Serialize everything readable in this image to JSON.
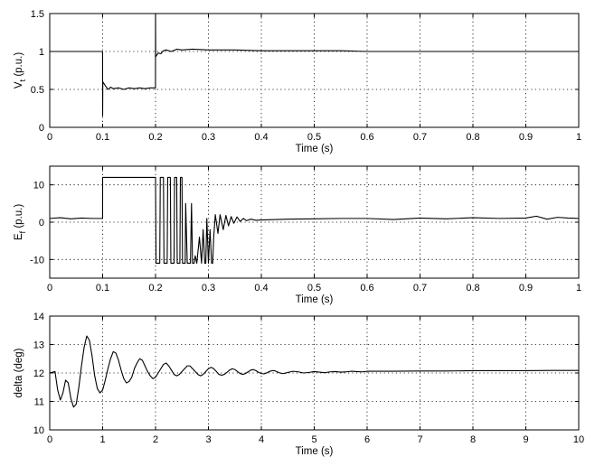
{
  "figure": {
    "background": "#ffffff",
    "line_color": "#000000"
  },
  "chart_data": [
    {
      "type": "line",
      "xlabel": "Time (s)",
      "ylabel": "V",
      "ylabel_subscript": "t",
      "ylabel_suffix": " (p.u.)",
      "xlim": [
        0,
        1
      ],
      "ylim": [
        0,
        1.5
      ],
      "xticks": [
        0,
        0.1,
        0.2,
        0.3,
        0.4,
        0.5,
        0.6,
        0.7,
        0.8,
        0.9,
        1
      ],
      "xtick_labels": [
        "0",
        "0.1",
        "0.2",
        "0.3",
        "0.4",
        "0.5",
        "0.6",
        "0.7",
        "0.8",
        "0.9",
        "1"
      ],
      "yticks": [
        0,
        0.5,
        1,
        1.5
      ],
      "ytick_labels": [
        "0",
        "0.5",
        "1",
        "1.5"
      ],
      "grid": true,
      "series": [
        {
          "x": [
            0,
            0.0999,
            0.1,
            0.1003,
            0.105,
            0.11,
            0.115,
            0.12,
            0.13,
            0.14,
            0.15,
            0.16,
            0.17,
            0.18,
            0.19,
            0.1999,
            0.2,
            0.2003,
            0.205,
            0.21,
            0.215,
            0.22,
            0.23,
            0.24,
            0.25,
            0.27,
            0.3,
            0.35,
            0.4,
            0.45,
            0.5,
            0.55,
            0.6,
            0.7,
            0.8,
            0.9,
            1
          ],
          "y": [
            1,
            1,
            0.15,
            0.6,
            0.55,
            0.5,
            0.53,
            0.51,
            0.52,
            0.5,
            0.52,
            0.51,
            0.52,
            0.51,
            0.52,
            0.52,
            1.5,
            0.93,
            0.98,
            0.97,
            1.01,
            1.02,
            1.0,
            1.03,
            1.02,
            1.03,
            1.02,
            1.02,
            1.01,
            1.01,
            1.01,
            1.01,
            1.0,
            1.0,
            1.0,
            1.0,
            1.0
          ]
        }
      ]
    },
    {
      "type": "line",
      "xlabel": "Time (s)",
      "ylabel": "E",
      "ylabel_subscript": "f",
      "ylabel_suffix": " (p.u.)",
      "xlim": [
        0,
        1
      ],
      "ylim": [
        -15,
        15
      ],
      "xticks": [
        0,
        0.1,
        0.2,
        0.3,
        0.4,
        0.5,
        0.6,
        0.7,
        0.8,
        0.9,
        1
      ],
      "xtick_labels": [
        "0",
        "0.1",
        "0.2",
        "0.3",
        "0.4",
        "0.5",
        "0.6",
        "0.7",
        "0.8",
        "0.9",
        "1"
      ],
      "yticks": [
        -10,
        0,
        10
      ],
      "ytick_labels": [
        "-10",
        "0",
        "10"
      ],
      "grid": true,
      "series": [
        {
          "x": [
            0,
            0.02,
            0.04,
            0.06,
            0.08,
            0.0999,
            0.1,
            0.2,
            0.201,
            0.208,
            0.209,
            0.215,
            0.216,
            0.222,
            0.223,
            0.228,
            0.229,
            0.235,
            0.236,
            0.24,
            0.241,
            0.246,
            0.247,
            0.25,
            0.251,
            0.256,
            0.257,
            0.26,
            0.262,
            0.266,
            0.268,
            0.27,
            0.273,
            0.275,
            0.278,
            0.283,
            0.287,
            0.29,
            0.293,
            0.295,
            0.297,
            0.3,
            0.303,
            0.306,
            0.308,
            0.31,
            0.313,
            0.318,
            0.322,
            0.328,
            0.333,
            0.338,
            0.343,
            0.348,
            0.354,
            0.36,
            0.366,
            0.372,
            0.38,
            0.39,
            0.4,
            0.45,
            0.5,
            0.55,
            0.6,
            0.65,
            0.7,
            0.75,
            0.8,
            0.85,
            0.9,
            0.92,
            0.94,
            0.96,
            0.98,
            1
          ],
          "y": [
            1,
            1.2,
            0.9,
            1.1,
            1.0,
            1.0,
            12,
            12,
            -11,
            -11,
            12,
            12,
            -11,
            -11,
            12,
            12,
            -11,
            -11,
            12,
            12,
            -11,
            -11,
            12,
            12,
            -11,
            -11,
            5,
            -11,
            -11,
            -11,
            5,
            -11,
            -11,
            -9,
            -11,
            -4,
            -11,
            -2,
            -11,
            -11,
            1,
            -11,
            -2,
            -11,
            -11,
            -4,
            2,
            -3,
            2,
            -2,
            1.8,
            -1,
            1.5,
            -0.3,
            1.4,
            0.2,
            1.0,
            0.4,
            0.8,
            0.5,
            0.6,
            0.8,
            0.9,
            1.0,
            1.0,
            0.7,
            1.1,
            0.9,
            1.2,
            1.0,
            1.1,
            1.6,
            0.8,
            1.3,
            1.1,
            1.0
          ]
        }
      ]
    },
    {
      "type": "line",
      "xlabel": "Time (s)",
      "ylabel": "delta (deg)",
      "ylabel_subscript": "",
      "ylabel_suffix": "",
      "xlim": [
        0,
        10
      ],
      "ylim": [
        10,
        14
      ],
      "xticks": [
        0,
        1,
        2,
        3,
        4,
        5,
        6,
        7,
        8,
        9,
        10
      ],
      "xtick_labels": [
        "0",
        "1",
        "2",
        "3",
        "4",
        "5",
        "6",
        "7",
        "8",
        "9",
        "10"
      ],
      "yticks": [
        10,
        11,
        12,
        13,
        14
      ],
      "ytick_labels": [
        "10",
        "11",
        "12",
        "13",
        "14"
      ],
      "grid": true,
      "series": [
        {
          "x": [
            0,
            0.1,
            0.15,
            0.2,
            0.25,
            0.3,
            0.35,
            0.4,
            0.45,
            0.5,
            0.55,
            0.6,
            0.65,
            0.7,
            0.75,
            0.8,
            0.85,
            0.9,
            0.95,
            1.0,
            1.05,
            1.1,
            1.15,
            1.2,
            1.25,
            1.3,
            1.35,
            1.4,
            1.45,
            1.5,
            1.55,
            1.6,
            1.65,
            1.7,
            1.75,
            1.8,
            1.85,
            1.9,
            1.95,
            2.0,
            2.05,
            2.1,
            2.15,
            2.2,
            2.25,
            2.3,
            2.35,
            2.4,
            2.45,
            2.5,
            2.55,
            2.6,
            2.65,
            2.7,
            2.75,
            2.8,
            2.85,
            2.9,
            2.95,
            3.0,
            3.05,
            3.1,
            3.15,
            3.2,
            3.25,
            3.3,
            3.35,
            3.4,
            3.45,
            3.5,
            3.55,
            3.6,
            3.65,
            3.7,
            3.75,
            3.8,
            3.85,
            3.9,
            3.95,
            4.0,
            4.05,
            4.1,
            4.15,
            4.2,
            4.25,
            4.3,
            4.35,
            4.4,
            4.45,
            4.5,
            4.6,
            4.7,
            4.8,
            4.9,
            5.0,
            5.1,
            5.2,
            5.3,
            5.4,
            5.5,
            5.6,
            5.7,
            5.8,
            5.9,
            6.0,
            6.5,
            7.0,
            7.5,
            8.0,
            8.5,
            9.0,
            9.5,
            10
          ],
          "y": [
            12.0,
            12.05,
            11.4,
            11.05,
            11.3,
            11.75,
            11.65,
            11.1,
            10.8,
            10.9,
            11.5,
            12.25,
            12.9,
            13.3,
            13.15,
            12.6,
            11.9,
            11.45,
            11.3,
            11.4,
            11.75,
            12.15,
            12.5,
            12.75,
            12.7,
            12.45,
            12.1,
            11.8,
            11.65,
            11.7,
            11.85,
            12.15,
            12.35,
            12.5,
            12.45,
            12.25,
            12.05,
            11.9,
            11.8,
            11.85,
            12.0,
            12.15,
            12.3,
            12.35,
            12.25,
            12.1,
            11.95,
            11.9,
            11.95,
            12.05,
            12.15,
            12.25,
            12.25,
            12.15,
            12.05,
            11.95,
            11.9,
            11.95,
            12.05,
            12.15,
            12.2,
            12.15,
            12.05,
            11.95,
            11.92,
            11.95,
            12.02,
            12.1,
            12.15,
            12.12,
            12.05,
            11.98,
            11.95,
            11.98,
            12.04,
            12.1,
            12.12,
            12.08,
            12.02,
            11.98,
            11.97,
            12.0,
            12.05,
            12.08,
            12.08,
            12.04,
            12.0,
            11.98,
            11.99,
            12.02,
            12.06,
            12.04,
            12.0,
            12.02,
            12.05,
            12.03,
            12.01,
            12.04,
            12.05,
            12.03,
            12.04,
            12.06,
            12.05,
            12.04,
            12.06,
            12.06,
            12.07,
            12.07,
            12.08,
            12.08,
            12.08,
            12.09,
            12.09
          ]
        }
      ]
    }
  ]
}
